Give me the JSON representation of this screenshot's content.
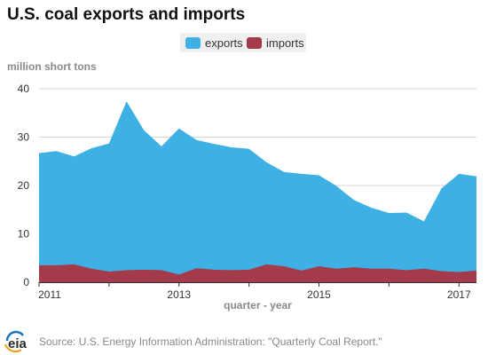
{
  "title": "U.S. coal exports and imports",
  "source": "Source: U.S. Energy Information Administration: \"Quarterly Coal Report.\"",
  "logo_text": "eia",
  "colors": {
    "exports": "#3fb0e3",
    "imports": "#a33b4b",
    "grid": "#d6d6d6",
    "axis": "#333333"
  },
  "legend": [
    {
      "label": "exports",
      "color": "#3fb0e3"
    },
    {
      "label": "imports",
      "color": "#a33b4b"
    }
  ],
  "chart_data": {
    "type": "area",
    "stacked": false,
    "ylabel": "million short tons",
    "xlabel": "quarter - year",
    "ylim": [
      0,
      40
    ],
    "yticks": [
      0,
      10,
      20,
      30,
      40
    ],
    "xlim": [
      "2011-Q1",
      "2017-Q2"
    ],
    "xticks": [
      {
        "label": "2011",
        "quarter": "2011-Q1"
      },
      {
        "label": "2013",
        "quarter": "2013-Q1"
      },
      {
        "label": "2015",
        "quarter": "2015-Q1"
      },
      {
        "label": "2017",
        "quarter": "2017-Q1"
      }
    ],
    "quarters": [
      "2011-Q1",
      "2011-Q2",
      "2011-Q3",
      "2011-Q4",
      "2012-Q1",
      "2012-Q2",
      "2012-Q3",
      "2012-Q4",
      "2013-Q1",
      "2013-Q2",
      "2013-Q3",
      "2013-Q4",
      "2014-Q1",
      "2014-Q2",
      "2014-Q3",
      "2014-Q4",
      "2015-Q1",
      "2015-Q2",
      "2015-Q3",
      "2015-Q4",
      "2016-Q1",
      "2016-Q2",
      "2016-Q3",
      "2016-Q4",
      "2017-Q1",
      "2017-Q2"
    ],
    "grid": true,
    "legend_position": "top-center",
    "series": [
      {
        "name": "exports",
        "values": [
          26.7,
          27.1,
          26.0,
          27.7,
          28.7,
          37.4,
          31.4,
          28.1,
          31.8,
          29.4,
          28.6,
          27.9,
          27.6,
          24.8,
          22.8,
          22.4,
          22.1,
          19.9,
          17.0,
          15.4,
          14.3,
          14.4,
          12.6,
          19.4,
          22.4,
          21.9
        ]
      },
      {
        "name": "imports",
        "values": [
          3.5,
          3.5,
          3.7,
          2.8,
          2.2,
          2.5,
          2.6,
          2.5,
          1.6,
          2.9,
          2.6,
          2.5,
          2.6,
          3.7,
          3.3,
          2.4,
          3.3,
          2.8,
          3.1,
          2.8,
          2.8,
          2.5,
          2.8,
          2.3,
          2.1,
          2.4
        ]
      }
    ]
  }
}
